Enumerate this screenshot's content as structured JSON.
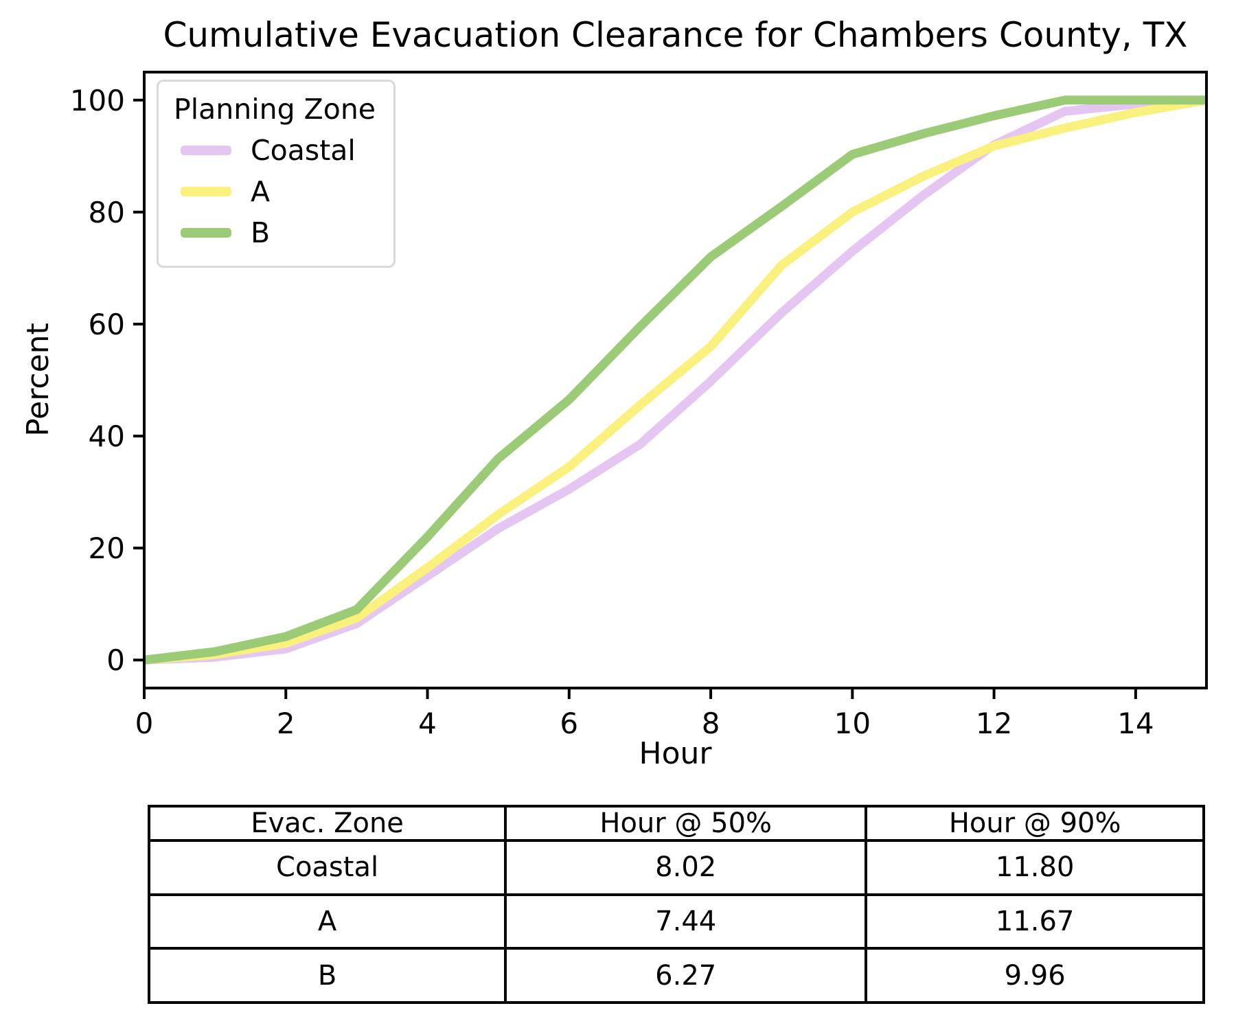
{
  "chart_data": {
    "type": "line",
    "title": "Cumulative Evacuation Clearance for Chambers County, TX",
    "xlabel": "Hour",
    "ylabel": "Percent",
    "xlim": [
      0,
      15
    ],
    "ylim": [
      -5,
      105
    ],
    "x_ticks": [
      0,
      2,
      4,
      6,
      8,
      10,
      12,
      14
    ],
    "y_ticks": [
      0,
      20,
      40,
      60,
      80,
      100
    ],
    "grid": false,
    "legend_title": "Planning Zone",
    "legend_position": "upper-left",
    "x": [
      0,
      1,
      2,
      3,
      4,
      5,
      6,
      7,
      8,
      9,
      10,
      11,
      12,
      13,
      14,
      15
    ],
    "series": [
      {
        "name": "Coastal",
        "color": "#e5c5f1",
        "values": [
          0,
          0.5,
          2,
          6.5,
          15,
          23.5,
          30.5,
          38.5,
          49.8,
          62,
          73,
          83,
          92,
          98,
          99.3,
          100
        ]
      },
      {
        "name": "A",
        "color": "#f9f07e",
        "values": [
          0,
          1,
          3,
          7.5,
          16.5,
          26,
          34.5,
          45.5,
          56,
          70.5,
          80,
          86.4,
          91.8,
          95,
          97.8,
          100
        ]
      },
      {
        "name": "B",
        "color": "#9bcb77",
        "values": [
          0,
          1.5,
          4.2,
          9,
          22,
          36,
          46.5,
          59.5,
          72,
          81,
          90.3,
          94,
          97.2,
          100,
          100,
          100
        ]
      }
    ],
    "axis_color": "#000000",
    "background": "#ffffff"
  },
  "table": {
    "headers": [
      "Evac. Zone",
      "Hour @ 50%",
      "Hour @ 90%"
    ],
    "rows": [
      [
        "Coastal",
        "8.02",
        "11.80"
      ],
      [
        "A",
        "7.44",
        "11.67"
      ],
      [
        "B",
        "6.27",
        "9.96"
      ]
    ]
  }
}
